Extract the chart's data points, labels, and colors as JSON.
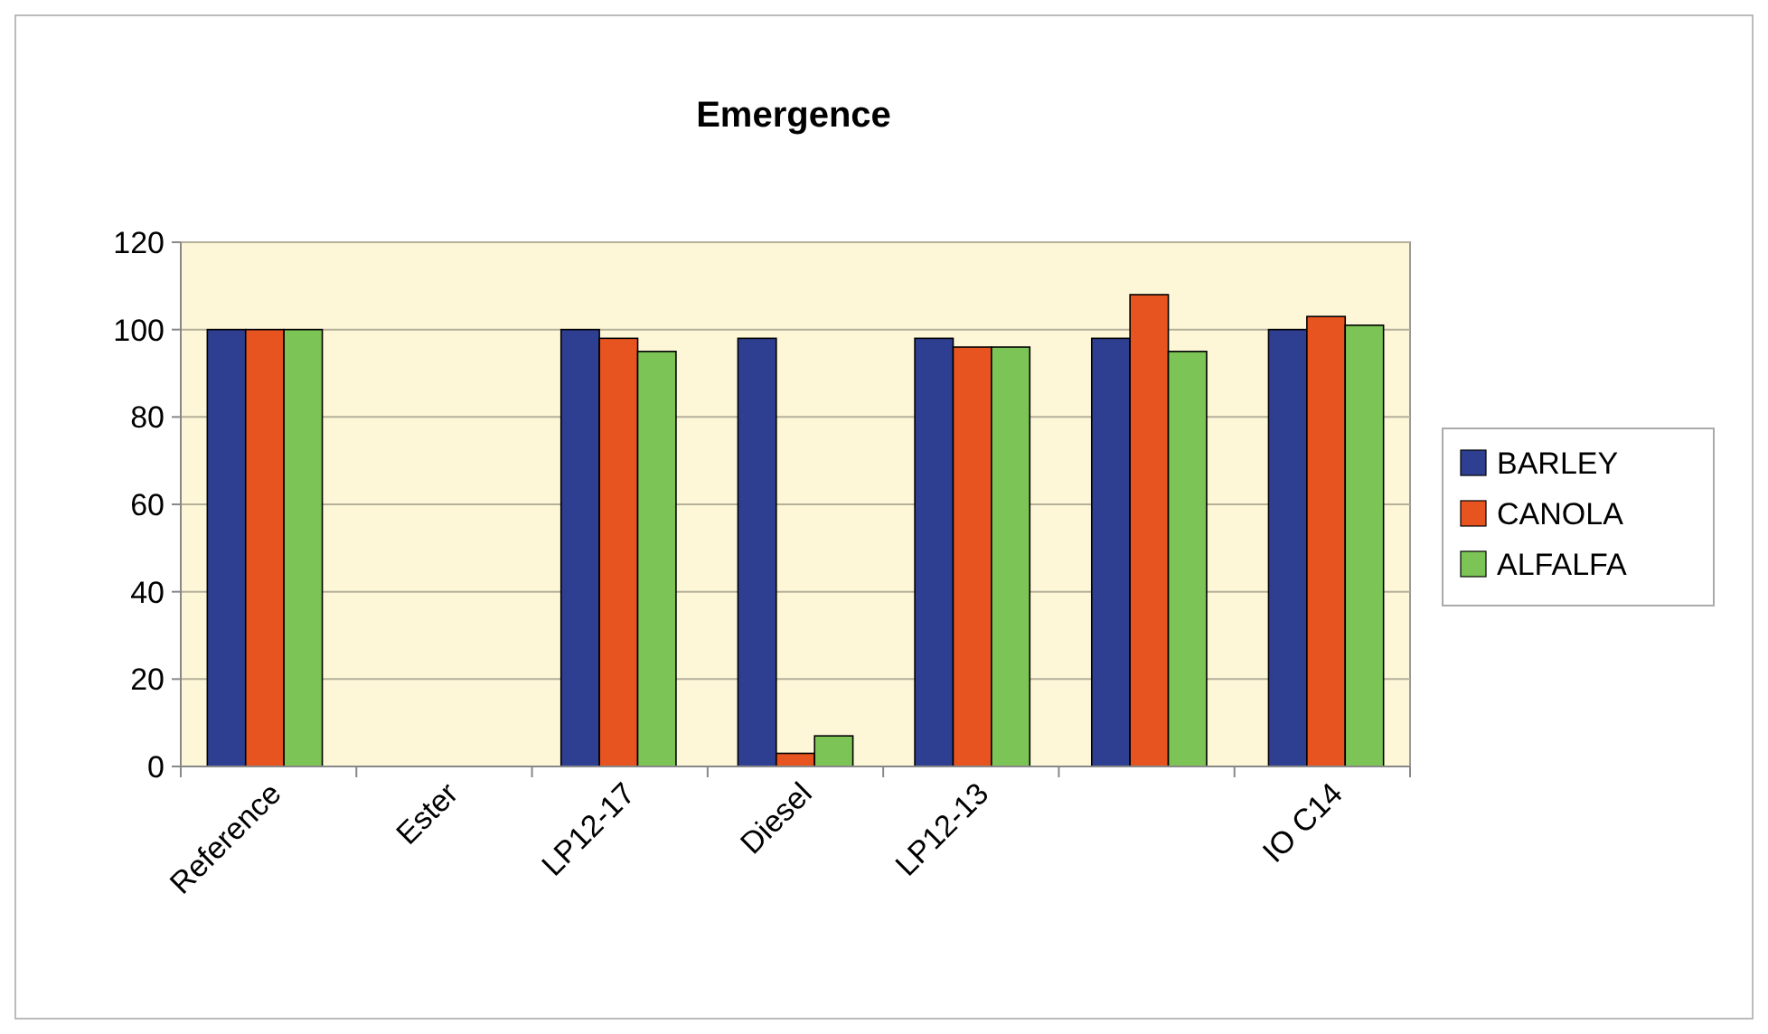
{
  "chart_data": {
    "type": "bar",
    "title": "Emergence",
    "categories": [
      "Reference",
      "Ester",
      "LP12-17",
      "Diesel",
      "LP12-13",
      null,
      "IO C14"
    ],
    "series": [
      {
        "name": "BARLEY",
        "color": "#2e3f91",
        "values": [
          100,
          null,
          100,
          98,
          98,
          98,
          100
        ]
      },
      {
        "name": "CANOLA",
        "color": "#e8541f",
        "values": [
          100,
          null,
          98,
          3,
          96,
          108,
          103
        ]
      },
      {
        "name": "ALFALFA",
        "color": "#7cc455",
        "values": [
          100,
          null,
          95,
          7,
          96,
          95,
          101
        ]
      }
    ],
    "ylim": [
      0,
      120
    ],
    "yticks": [
      0,
      20,
      40,
      60,
      80,
      100,
      120
    ],
    "grid": "y",
    "legend": "right"
  }
}
